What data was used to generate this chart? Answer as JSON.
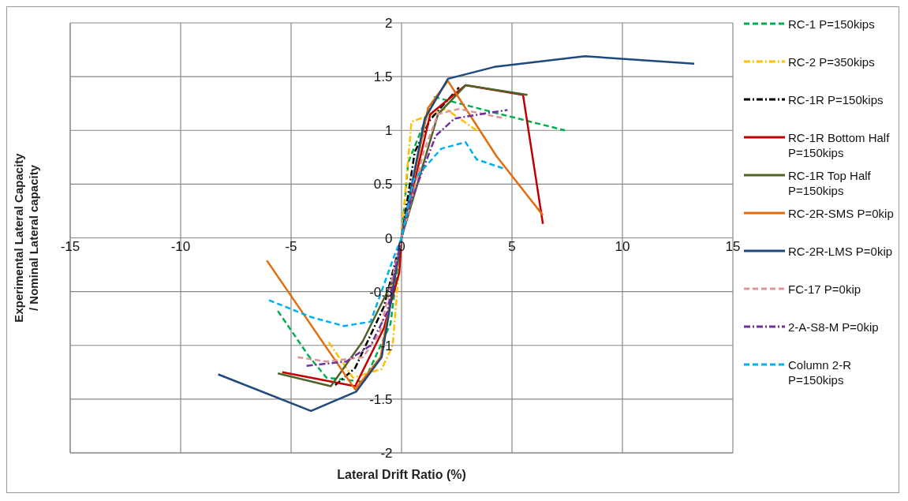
{
  "chart_data": {
    "type": "line",
    "xlabel": "Lateral Drift Ratio (%)",
    "ylabel": "Experimental Lateral Capacity / Nominal Lateral capacity",
    "xlim": [
      -15,
      15
    ],
    "xticks": [
      -15,
      -10,
      -5,
      0,
      5,
      10,
      15
    ],
    "ylim": [
      -2,
      2
    ],
    "yticks": [
      -2,
      -1.5,
      -1,
      -0.5,
      0,
      0.5,
      1,
      1.5,
      2
    ],
    "grid": true,
    "legend": "right",
    "marker": "none",
    "series": [
      {
        "name": "RC-1 P=150kips",
        "color": "#00b050",
        "line_style": "dashed",
        "x": [
          -5.6,
          -4.2,
          -3.4,
          -1.7,
          -0.5,
          0,
          0.3,
          1.5,
          4.5,
          7.4
        ],
        "values": [
          -0.68,
          -1.1,
          -1.3,
          -1.34,
          -0.8,
          0,
          0.7,
          1.31,
          1.15,
          1.0
        ]
      },
      {
        "name": "RC-2 P=350kips",
        "color": "#ffc000",
        "line_style": "dashdot",
        "x": [
          -3.3,
          -2.2,
          -0.9,
          -0.4,
          0,
          0.2,
          0.45,
          2.0,
          3.4
        ],
        "values": [
          -0.97,
          -1.3,
          -1.22,
          -1.0,
          0,
          0.5,
          1.08,
          1.2,
          1.0
        ]
      },
      {
        "name": "RC-1R P=150kips",
        "color": "#000000",
        "line_style": "dashdot",
        "x": [
          -3.0,
          -2.1,
          -0.8,
          0,
          0.6,
          1.3,
          2.6
        ],
        "values": [
          -1.37,
          -1.21,
          -0.64,
          0,
          0.8,
          1.1,
          1.4
        ]
      },
      {
        "name": "RC-1R Bottom Half P=150kips",
        "color": "#c00000",
        "line_style": "solid",
        "x": [
          -5.4,
          -2.1,
          -0.8,
          -0.1,
          0,
          1.3,
          2.9,
          5.5,
          6.4
        ],
        "values": [
          -1.25,
          -1.38,
          -0.84,
          -0.32,
          0,
          1.15,
          1.42,
          1.33,
          0.13
        ]
      },
      {
        "name": "RC-1R Top  Half P=150kips",
        "color": "#4f6228",
        "line_style": "solid",
        "x": [
          -5.6,
          -3.2,
          -1.75,
          -0.35,
          0,
          1.65,
          2.9,
          5.7
        ],
        "values": [
          -1.26,
          -1.38,
          -0.96,
          -0.38,
          0,
          1.15,
          1.42,
          1.33
        ]
      },
      {
        "name": "RC-2R-SMS P=0kip",
        "color": "#e46c0a",
        "line_style": "solid",
        "x": [
          -6.1,
          -2.1,
          -0.95,
          0,
          1.2,
          2.1,
          4.3,
          6.4
        ],
        "values": [
          -0.21,
          -1.41,
          -1.11,
          0,
          1.21,
          1.46,
          0.76,
          0.21
        ]
      },
      {
        "name": "RC-2R-LMS P=0kip",
        "color": "#1f497d",
        "line_style": "solid",
        "x": [
          -8.3,
          -4.1,
          -2.05,
          -0.9,
          0,
          1.05,
          2.1,
          4.2,
          8.3,
          13.25
        ],
        "values": [
          -1.27,
          -1.61,
          -1.43,
          -1.11,
          0,
          1.11,
          1.48,
          1.59,
          1.69,
          1.62
        ]
      },
      {
        "name": "FC-17 P=0kip",
        "color": "#d99694",
        "line_style": "dashed",
        "x": [
          -4.7,
          -3.4,
          -1.75,
          -1.0,
          0,
          0.45,
          1.0,
          1.65,
          2.6,
          4.7
        ],
        "values": [
          -1.11,
          -1.15,
          -1.11,
          -0.89,
          0,
          0.35,
          0.8,
          1.15,
          1.2,
          1.11
        ]
      },
      {
        "name": "2-A-S8-M P=0kip",
        "color": "#7030a0",
        "line_style": "dashdot",
        "x": [
          -4.3,
          -2.5,
          -1.4,
          -0.65,
          0,
          0.3,
          1.55,
          2.4,
          3.85,
          4.8
        ],
        "values": [
          -1.19,
          -1.15,
          -1.0,
          -0.69,
          0,
          0.27,
          0.95,
          1.11,
          1.16,
          1.19
        ]
      },
      {
        "name": "Column 2-R P=150kips",
        "color": "#00b0f0",
        "line_style": "dashed",
        "x": [
          -6.0,
          -4.05,
          -2.6,
          -1.4,
          -0.3,
          0,
          0.55,
          1.8,
          2.9,
          3.4,
          4.7
        ],
        "values": [
          -0.58,
          -0.74,
          -0.82,
          -0.78,
          -0.15,
          0,
          0.54,
          0.83,
          0.89,
          0.73,
          0.64
        ]
      }
    ]
  }
}
